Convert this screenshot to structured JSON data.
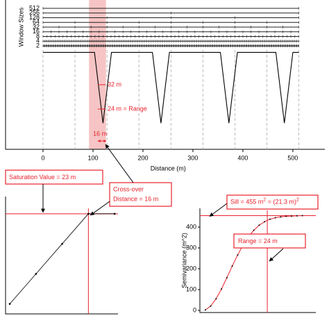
{
  "chart_data": [
    {
      "type": "profile",
      "y_label": "Window Sizes",
      "categories": [
        "512",
        "256",
        "128",
        "64",
        "32",
        "16",
        "8",
        "4",
        "2"
      ],
      "x_label": "Distance (m)",
      "xlim": [
        -75,
        564
      ],
      "xticks": [
        0,
        100,
        200,
        300,
        400,
        500
      ],
      "gridlines_x": [
        0,
        64,
        128,
        192,
        256,
        320,
        384,
        448,
        512
      ],
      "highlight": [
        92,
        126
      ],
      "highlight_color": "#f6c4c4",
      "color": "#000000",
      "x": [
        0,
        103,
        120,
        137,
        219,
        236,
        253,
        355,
        372,
        389,
        466,
        483,
        500,
        512
      ],
      "values": [
        0,
        0,
        -1,
        0,
        0,
        -1,
        0,
        0,
        -1,
        0,
        0,
        -1,
        0,
        0
      ],
      "ylim": [
        -1.37,
        0.74
      ],
      "annotations": [
        "32 m",
        "24 m = Range",
        "16 m"
      ]
    },
    {
      "type": "saturation",
      "log_x": true,
      "x": [
        2,
        4,
        8,
        16,
        32
      ],
      "values": [
        5,
        11,
        17,
        23,
        23
      ],
      "xlim": [
        1.79,
        35
      ],
      "ylim": [
        3,
        24.5
      ],
      "saturation": 23,
      "crossover": 16,
      "line_color": "#e8212b",
      "color": "#000000",
      "annotations": [
        "Saturation Value = 23 m",
        "Cross-over",
        "Distance = 16 m"
      ]
    },
    {
      "type": "variogram",
      "y_label": "Semivariance (m^2)",
      "x": [
        1,
        3,
        5,
        7,
        9,
        11,
        13,
        15,
        17,
        19,
        21,
        23,
        25,
        27,
        29,
        31,
        33,
        35,
        37
      ],
      "values": [
        2,
        21,
        56,
        103,
        157,
        213,
        266,
        314,
        354,
        385,
        409,
        426,
        438,
        445,
        449,
        452,
        453,
        454,
        455
      ],
      "xlim": [
        -1,
        42
      ],
      "ylim": [
        -10,
        490
      ],
      "yticks": [
        0,
        100,
        200,
        300,
        400
      ],
      "sill": 455,
      "range": 24,
      "line_color": "#e8212b",
      "color": "#000000",
      "sill_label": [
        "Sill = 455 m",
        "2",
        " = (21.3 m)",
        "2"
      ],
      "range_label": "Range = 24 m"
    }
  ]
}
